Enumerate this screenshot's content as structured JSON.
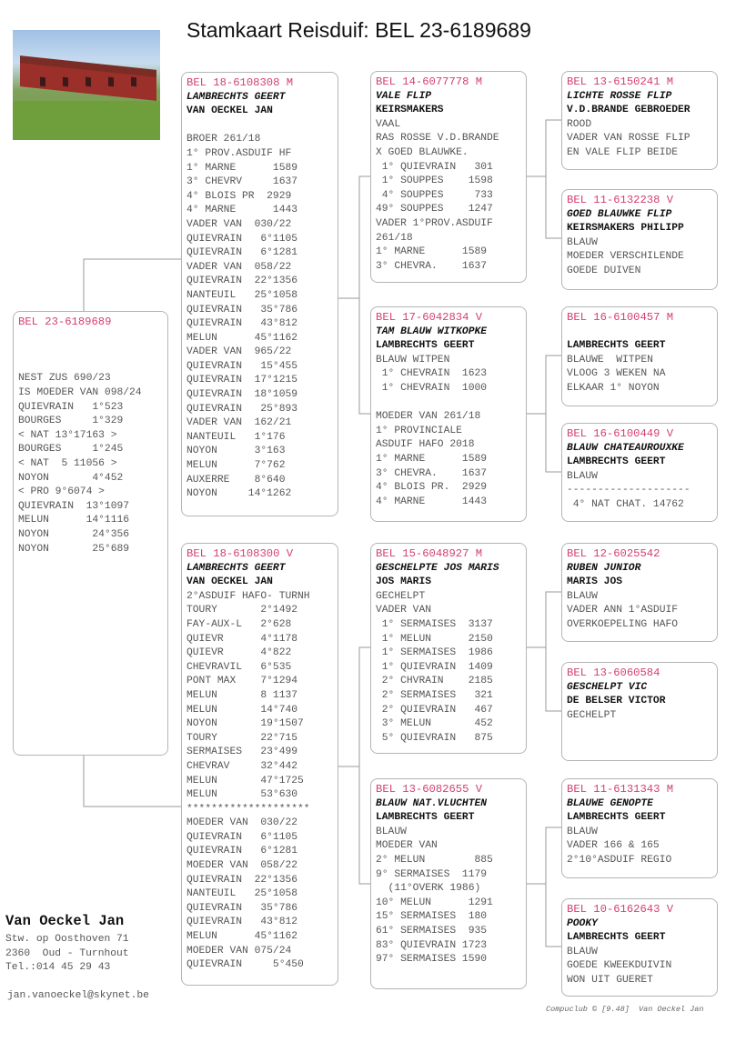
{
  "title": "Stamkaart Reisduif: BEL 23-6189689",
  "colors": {
    "ring_header": "#d4416f",
    "text": "#555555",
    "card_border": "#b5b5b5"
  },
  "photo": {
    "icon": "loft-photo"
  },
  "subject": {
    "header": "BEL 23-6189689",
    "name": "",
    "owner": "",
    "lines": [
      "",
      "NEST ZUS 690/23",
      "IS MOEDER VAN 098/24",
      "QUIEVRAIN   1°523",
      "BOURGES     1°329",
      "< NAT 13°17163 >",
      "BOURGES     1°245",
      "< NAT  5 11056 >",
      "NOYON       4°452",
      "< PRO 9°6074 >",
      "QUIEVRAIN  13°1097",
      "MELUN      14°1116",
      "NOYON       24°356",
      "NOYON       25°689"
    ]
  },
  "parents": [
    {
      "header": "BEL 18-6108308 M",
      "name": "LAMBRECHTS GEERT",
      "owner": "VAN OECKEL JAN",
      "lines": [
        "",
        "BROER 261/18",
        "1° PROV.ASDUIF HF",
        "1° MARNE      1589",
        "3° CHEVRV     1637",
        "4° BLOIS PR  2929",
        "4° MARNE      1443",
        "VADER VAN  030/22",
        "QUIEVRAIN   6°1105",
        "QUIEVRAIN   6°1281",
        "VADER VAN  058/22",
        "QUIEVRAIN  22°1356",
        "NANTEUIL   25°1058",
        "QUIEVRAIN   35°786",
        "QUIEVRAIN   43°812",
        "MELUN      45°1162",
        "VADER VAN  965/22",
        "QUIEVRAIN   15°455",
        "QUIEVRAIN  17°1215",
        "QUIEVRAIN  18°1059",
        "QUIEVRAIN   25°893",
        "VADER VAN  162/21",
        "NANTEUIL   1°176",
        "NOYON      3°163",
        "MELUN      7°762",
        "AUXERRE    8°640",
        "NOYON     14°1262"
      ]
    },
    {
      "header": "BEL 18-6108300 V",
      "name": "LAMBRECHTS GEERT",
      "owner": "VAN OECKEL JAN",
      "lines": [
        "2°ASDUIF HAFO- TURNH",
        "TOURY       2°1492",
        "FAY-AUX-L   2°628",
        "QUIEVR      4°1178",
        "QUIEVR      4°822",
        "CHEVRAVIL   6°535",
        "PONT MAX    7°1294",
        "MELUN       8 1137",
        "MELUN       14°740",
        "NOYON       19°1507",
        "TOURY       22°715",
        "SERMAISES   23°499",
        "CHEVRAV     32°442",
        "MELUN       47°1725",
        "MELUN       53°630",
        "********************",
        "MOEDER VAN  030/22",
        "QUIEVRAIN   6°1105",
        "QUIEVRAIN   6°1281",
        "MOEDER VAN  058/22",
        "QUIEVRAIN  22°1356",
        "NANTEUIL   25°1058",
        "QUIEVRAIN   35°786",
        "QUIEVRAIN   43°812",
        "MELUN      45°1162",
        "MOEDER VAN 075/24",
        "QUIEVRAIN     5°450"
      ]
    }
  ],
  "grandparents": [
    {
      "header": "BEL 14-6077778 M",
      "name": "VALE FLIP",
      "owner": "KEIRSMAKERS",
      "lines": [
        "VAAL",
        "RAS ROSSE V.D.BRANDE",
        "X GOED BLAUWKE.",
        " 1° QUIEVRAIN   301",
        " 1° SOUPPES    1598",
        " 4° SOUPPES     733",
        "49° SOUPPES    1247",
        "VADER 1°PROV.ASDUIF",
        "261/18",
        "1° MARNE      1589",
        "3° CHEVRA.    1637"
      ]
    },
    {
      "header": "BEL 17-6042834 V",
      "name": "TAM BLAUW WITKOPKE",
      "owner": "LAMBRECHTS GEERT",
      "lines": [
        "BLAUW WITPEN",
        " 1° CHEVRAIN  1623",
        " 1° CHEVRAIN  1000",
        "",
        "MOEDER VAN 261/18",
        "1° PROVINCIALE",
        "ASDUIF HAFO 2018",
        "1° MARNE      1589",
        "3° CHEVRA.    1637",
        "4° BLOIS PR.  2929",
        "4° MARNE      1443"
      ]
    },
    {
      "header": "BEL 15-6048927 M",
      "name": "GESCHELPTE JOS MARIS",
      "owner": "JOS MARIS",
      "lines": [
        "GECHELPT",
        "VADER VAN",
        " 1° SERMAISES  3137",
        " 1° MELUN      2150",
        " 1° SERMAISES  1986",
        " 1° QUIEVRAIN  1409",
        " 2° CHVRAIN    2185",
        " 2° SERMAISES   321",
        " 2° QUIEVRAIN   467",
        " 3° MELUN       452",
        " 5° QUIEVRAIN   875"
      ]
    },
    {
      "header": "BEL 13-6082655 V",
      "name": "BLAUW NAT.VLUCHTEN",
      "owner": "LAMBRECHTS GEERT",
      "lines": [
        "BLAUW",
        "MOEDER VAN",
        "2° MELUN        885",
        "9° SERMAISES  1179",
        "  (11°OVERK 1986)",
        "10° MELUN      1291",
        "15° SERMAISES  180",
        "61° SERMAISES  935",
        "83° QUIEVRAIN 1723",
        "97° SERMAISES 1590"
      ]
    }
  ],
  "great_grandparents": [
    {
      "header": "BEL 13-6150241 M",
      "name": "LICHTE ROSSE FLIP",
      "owner": "V.D.BRANDE GEBROEDER",
      "lines": [
        "ROOD",
        "VADER VAN ROSSE FLIP",
        "EN VALE FLIP BEIDE"
      ]
    },
    {
      "header": "BEL 11-6132238 V",
      "name": "GOED BLAUWKE FLIP",
      "owner": "KEIRSMAKERS PHILIPP",
      "lines": [
        "BLAUW",
        "MOEDER VERSCHILENDE",
        "GOEDE DUIVEN"
      ]
    },
    {
      "header": "BEL 16-6100457 M",
      "name": "",
      "owner": "LAMBRECHTS GEERT",
      "lines": [
        "BLAUWE  WITPEN",
        "VLOOG 3 WEKEN NA",
        "ELKAAR 1° NOYON"
      ]
    },
    {
      "header": "BEL 16-6100449 V",
      "name": "BLAUW CHATEAUROUXKE",
      "owner": "LAMBRECHTS GEERT",
      "lines": [
        "BLAUW",
        "--------------------",
        " 4° NAT CHAT. 14762"
      ]
    },
    {
      "header": "BEL 12-6025542",
      "name": "RUBEN JUNIOR",
      "owner": "MARIS JOS",
      "lines": [
        "BLAUW",
        "VADER ANN 1°ASDUIF",
        "OVERKOEPELING HAFO"
      ]
    },
    {
      "header": "BEL 13-6060584",
      "name": "GESCHELPT VIC",
      "owner": "DE BELSER VICTOR",
      "lines": [
        "GECHELPT"
      ]
    },
    {
      "header": "BEL 11-6131343 M",
      "name": "BLAUWE GENOPTE",
      "owner": "LAMBRECHTS GEERT",
      "lines": [
        "BLAUW",
        "VADER 166 & 165",
        "2°10°ASDUIF REGIO"
      ]
    },
    {
      "header": "BEL 10-6162643 V",
      "name": "POOKY",
      "owner": "LAMBRECHTS GEERT",
      "lines": [
        "BLAUW",
        "GOEDE KWEEKDUIVIN",
        "WON UIT GUERET"
      ]
    }
  ],
  "breeder": {
    "name": "Van Oeckel Jan",
    "address": "Stw. op Oosthoven 71",
    "city": "2360  Oud - Turnhout",
    "phone": "Tel.:014 45 29 43",
    "email": "jan.vanoeckel@skynet.be"
  },
  "footer": "Compuclub © [9.48]  Van Oeckel Jan"
}
